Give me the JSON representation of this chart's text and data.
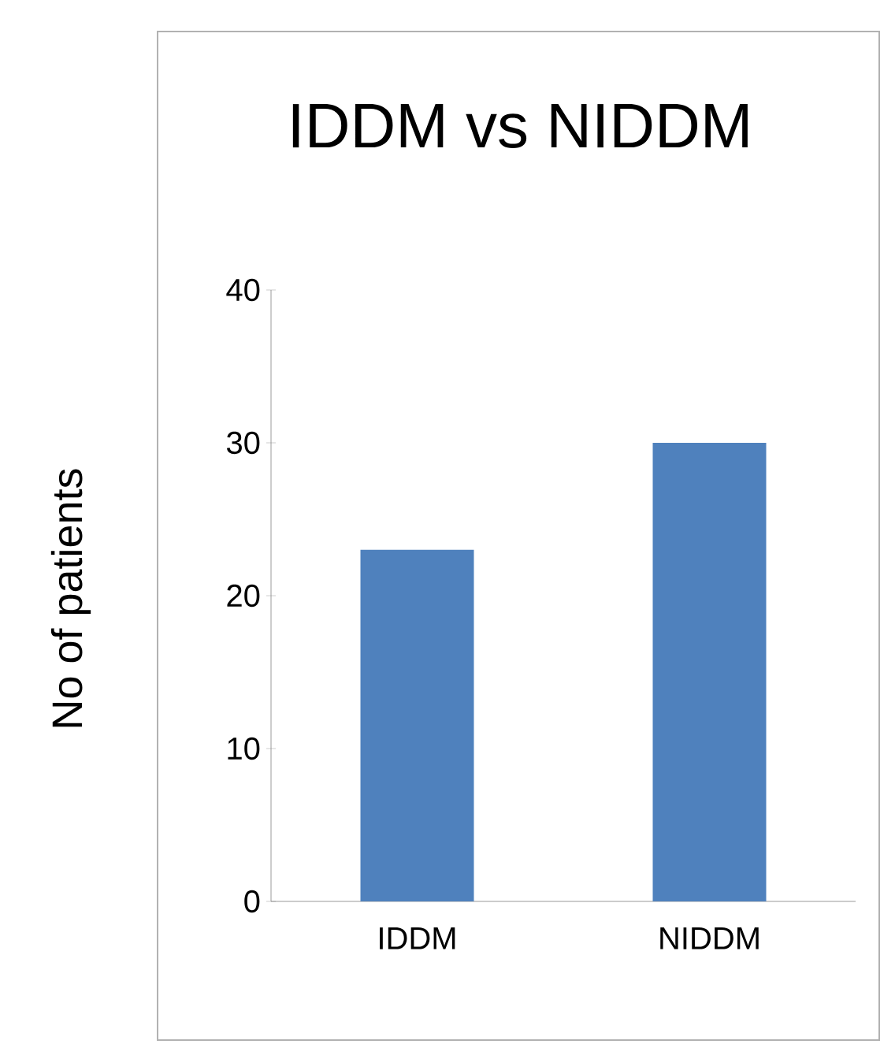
{
  "chart_data": {
    "type": "bar",
    "title": "IDDM vs NIDDM",
    "ylabel": "No of patients",
    "categories": [
      "IDDM",
      "NIDDM"
    ],
    "values": [
      23,
      30
    ],
    "color": "#4f81bd",
    "ylim": [
      0,
      40
    ],
    "yticks": [
      0,
      10,
      20,
      30,
      40
    ],
    "grid": false
  }
}
